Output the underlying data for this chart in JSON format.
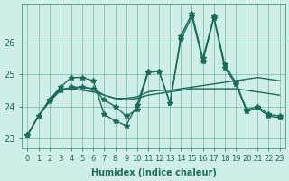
{
  "xlabel": "Humidex (Indice chaleur)",
  "ylabel": "",
  "xlim": [
    -0.5,
    23.5
  ],
  "ylim": [
    22.7,
    27.2
  ],
  "yticks": [
    23,
    24,
    25,
    26
  ],
  "xticks": [
    0,
    1,
    2,
    3,
    4,
    5,
    6,
    7,
    8,
    9,
    10,
    11,
    12,
    13,
    14,
    15,
    16,
    17,
    18,
    19,
    20,
    21,
    22,
    23
  ],
  "bg_color": "#d0eee8",
  "grid_color": "#2e8b7a",
  "line_color": "#1a6b5a",
  "lines": [
    [
      23.1,
      23.7,
      24.2,
      24.6,
      24.9,
      24.9,
      24.8,
      23.75,
      23.55,
      23.4,
      24.05,
      25.1,
      25.1,
      24.1,
      26.2,
      26.9,
      25.5,
      26.8,
      25.3,
      24.75,
      23.9,
      24.0,
      23.75,
      23.7
    ],
    [
      23.1,
      23.7,
      24.2,
      24.55,
      24.55,
      24.6,
      24.55,
      24.35,
      24.25,
      24.25,
      24.3,
      24.45,
      24.5,
      24.5,
      24.55,
      24.6,
      24.65,
      24.7,
      24.75,
      24.8,
      24.85,
      24.9,
      24.85,
      24.8
    ],
    [
      23.1,
      23.7,
      24.15,
      24.5,
      24.55,
      24.5,
      24.45,
      24.35,
      24.25,
      24.2,
      24.25,
      24.35,
      24.4,
      24.45,
      24.5,
      24.55,
      24.55,
      24.55,
      24.55,
      24.55,
      24.5,
      24.45,
      24.4,
      24.35
    ],
    [
      23.1,
      23.7,
      24.15,
      24.5,
      24.6,
      24.6,
      24.55,
      24.2,
      24.0,
      23.7,
      23.9,
      25.05,
      25.1,
      24.1,
      26.1,
      26.8,
      25.4,
      26.75,
      25.2,
      24.7,
      23.85,
      23.95,
      23.7,
      23.65
    ]
  ],
  "markers": [
    "*",
    null,
    null,
    "*"
  ],
  "marker_size": 4,
  "linewidth": 1.0,
  "font_size": 7
}
